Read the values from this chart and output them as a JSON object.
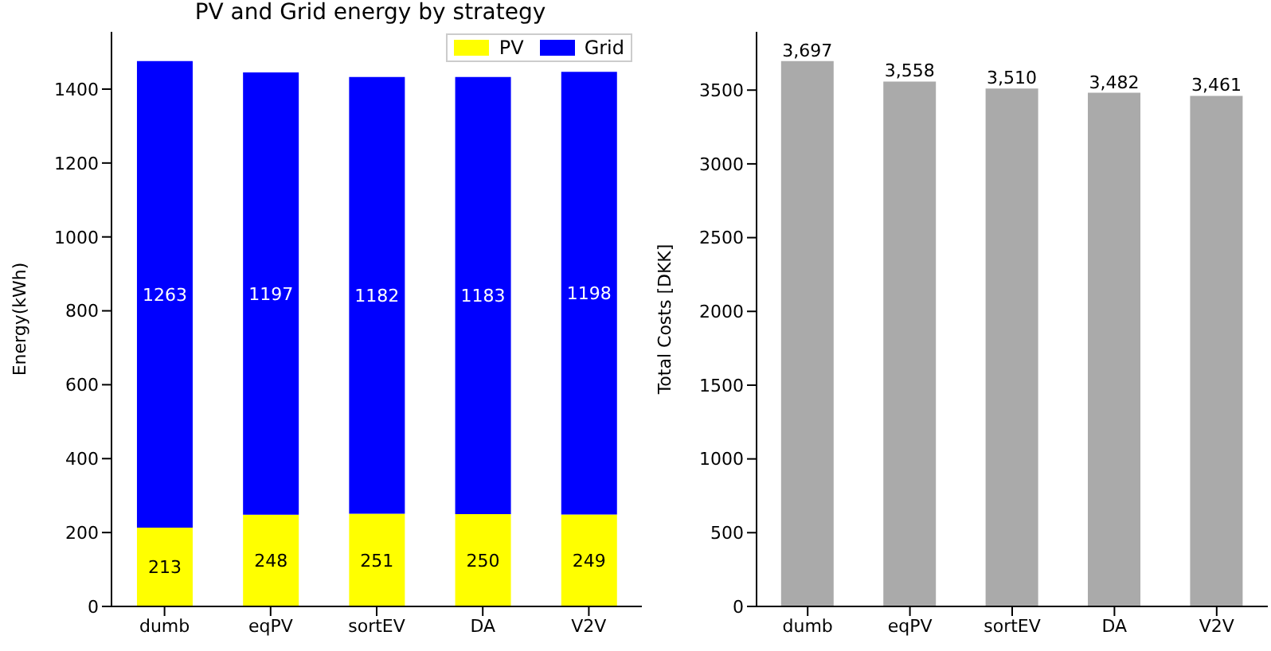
{
  "chart_data": [
    {
      "type": "bar",
      "title": "PV and Grid energy by strategy",
      "ylabel": "Energy(kWh)",
      "categories": [
        "dumb",
        "eqPV",
        "sortEV",
        "DA",
        "V2V"
      ],
      "stacked": true,
      "series": [
        {
          "name": "PV",
          "color": "#ffff00",
          "values": [
            213,
            248,
            251,
            250,
            249
          ]
        },
        {
          "name": "Grid",
          "color": "#0000ff",
          "values": [
            1263,
            1197,
            1182,
            1183,
            1198
          ]
        }
      ],
      "ylim": [
        0,
        1555
      ],
      "yticks": [
        0,
        200,
        400,
        600,
        800,
        1000,
        1200,
        1400
      ],
      "data_labels": true,
      "legend": "top right",
      "grid": false
    },
    {
      "type": "bar",
      "ylabel": "Total Costs [DKK]",
      "categories": [
        "dumb",
        "eqPV",
        "sortEV",
        "DA",
        "V2V"
      ],
      "series": [
        {
          "color": "#aaaaaa",
          "values": [
            3697,
            3558,
            3510,
            3482,
            3461
          ],
          "value_labels": [
            "3,697",
            "3,558",
            "3,510",
            "3,482",
            "3,461"
          ]
        }
      ],
      "ylim": [
        0,
        3895
      ],
      "yticks": [
        0,
        500,
        1000,
        1500,
        2000,
        2500,
        3000,
        3500
      ],
      "grid": false
    }
  ]
}
